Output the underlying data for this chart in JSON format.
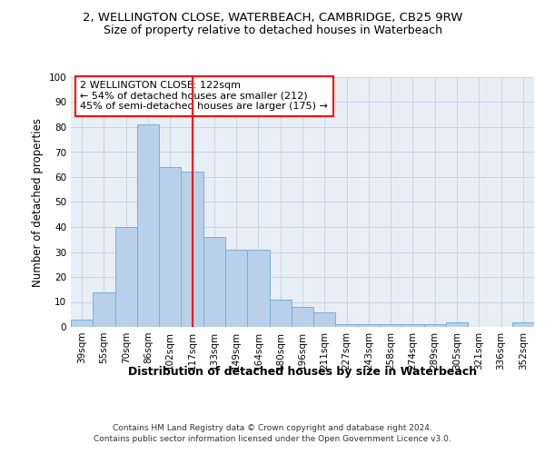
{
  "title1": "2, WELLINGTON CLOSE, WATERBEACH, CAMBRIDGE, CB25 9RW",
  "title2": "Size of property relative to detached houses in Waterbeach",
  "xlabel": "Distribution of detached houses by size in Waterbeach",
  "ylabel": "Number of detached properties",
  "categories": [
    "39sqm",
    "55sqm",
    "70sqm",
    "86sqm",
    "102sqm",
    "117sqm",
    "133sqm",
    "149sqm",
    "164sqm",
    "180sqm",
    "196sqm",
    "211sqm",
    "227sqm",
    "243sqm",
    "258sqm",
    "274sqm",
    "289sqm",
    "305sqm",
    "321sqm",
    "336sqm",
    "352sqm"
  ],
  "bar_heights": [
    3,
    14,
    40,
    81,
    64,
    62,
    36,
    31,
    31,
    11,
    8,
    6,
    1,
    1,
    1,
    1,
    1,
    2,
    0,
    0,
    2
  ],
  "bar_color": "#b8d0ea",
  "bar_edge_color": "#7aaed4",
  "grid_color": "#c8d4e4",
  "background_color": "#e8eef6",
  "vline_color": "red",
  "vline_position": 5.5,
  "annotation_title": "2 WELLINGTON CLOSE: 122sqm",
  "annotation_line1": "← 54% of detached houses are smaller (212)",
  "annotation_line2": "45% of semi-detached houses are larger (175) →",
  "annotation_box_facecolor": "white",
  "annotation_box_edgecolor": "red",
  "footer1": "Contains HM Land Registry data © Crown copyright and database right 2024.",
  "footer2": "Contains public sector information licensed under the Open Government Licence v3.0.",
  "ylim": [
    0,
    100
  ],
  "title1_fontsize": 9.5,
  "title2_fontsize": 9,
  "xlabel_fontsize": 9,
  "ylabel_fontsize": 8.5,
  "tick_fontsize": 7.5,
  "annotation_fontsize": 8,
  "footer_fontsize": 6.5
}
